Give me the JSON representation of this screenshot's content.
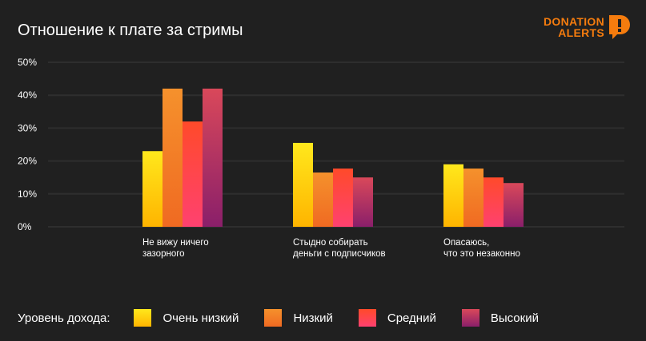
{
  "title": "Отношение к плате за стримы",
  "logo": {
    "line1": "DONATION",
    "line2": "ALERTS"
  },
  "legend_title": "Уровень дохода:",
  "chart_data": {
    "type": "bar",
    "title": "Отношение к плате за стримы",
    "categories": [
      [
        "Не вижу ничего",
        "зазорного"
      ],
      [
        "Стыдно собирать",
        "деньги с подписчиков"
      ],
      [
        "Опасаюсь,",
        "что это незаконно"
      ]
    ],
    "series": [
      {
        "name": "Очень низкий",
        "values": [
          23,
          25.5,
          19
        ],
        "colors": [
          "#ffe81c",
          "#ffb400"
        ]
      },
      {
        "name": "Низкий",
        "values": [
          42,
          16.5,
          17.7
        ],
        "colors": [
          "#f5912c",
          "#f06a22"
        ]
      },
      {
        "name": "Средний",
        "values": [
          32,
          17.7,
          15
        ],
        "colors": [
          "#ff4a2a",
          "#ff4170"
        ]
      },
      {
        "name": "Высокий",
        "values": [
          42,
          15,
          13.3
        ],
        "colors": [
          "#d9485a",
          "#8a1f6a"
        ]
      }
    ],
    "ylim": [
      0,
      50
    ],
    "yticks": [
      "0%",
      "10%",
      "20%",
      "30%",
      "40%",
      "50%"
    ],
    "grid": true,
    "legend_position": "bottom"
  }
}
